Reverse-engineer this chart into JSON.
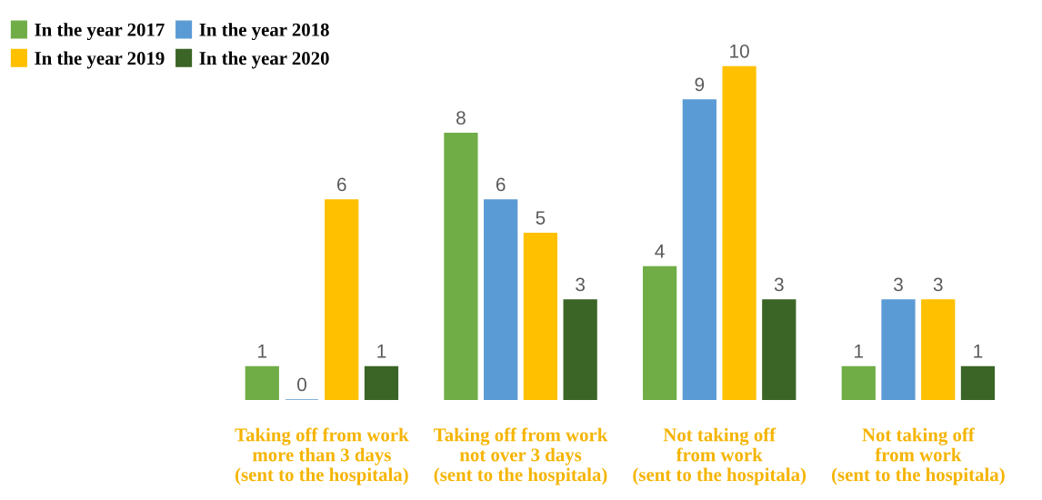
{
  "chart_data": {
    "type": "bar",
    "categories": [
      "Taking off from work\nmore than 3 days\n(sent to the hospitala)",
      "Taking off from work\nnot over 3 days\n(sent to the hospitala)",
      "Not taking off\nfrom work\n(sent to the hospitala)",
      "Not taking off\nfrom work\n(sent to the hospitala)"
    ],
    "series": [
      {
        "name": "In the year 2017",
        "color": "#70ad47",
        "values": [
          1,
          8,
          4,
          1
        ]
      },
      {
        "name": "In the year 2018",
        "color": "#5b9bd5",
        "values": [
          0,
          6,
          9,
          3
        ]
      },
      {
        "name": "In the year 2019",
        "color": "#ffc000",
        "values": [
          6,
          5,
          10,
          3
        ]
      },
      {
        "name": "In the year 2020",
        "color": "#3b6526",
        "values": [
          1,
          3,
          3,
          1
        ]
      }
    ],
    "data_labels": true,
    "legend": "top left",
    "grid": false,
    "tick_labels": "x"
  }
}
